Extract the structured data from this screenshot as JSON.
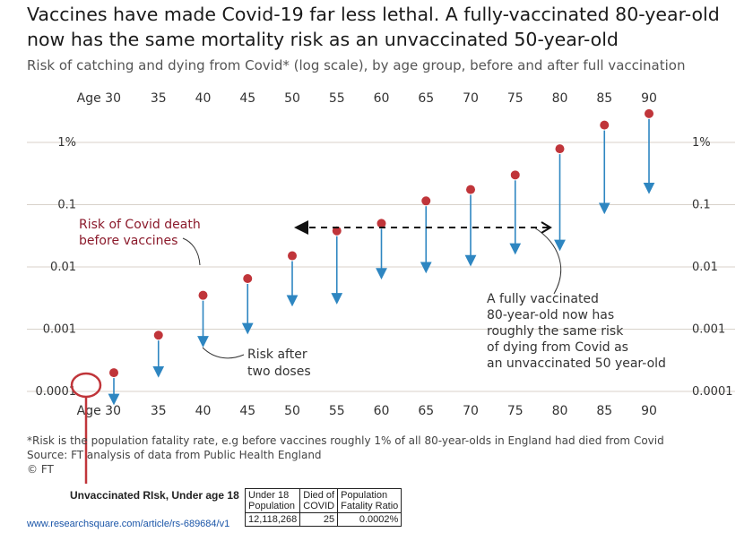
{
  "title": "Vaccines have made Covid-19 far less lethal. A fully-vaccinated 80-year-old now has the same mortality risk as an unvaccinated 50-year-old",
  "subtitle": "Risk of catching and dying from Covid* (log scale), by age group, before and after full vaccination",
  "chart_data": {
    "type": "scatter",
    "x": [
      30,
      35,
      40,
      45,
      50,
      55,
      60,
      65,
      70,
      75,
      80,
      85,
      90
    ],
    "x_tick_labels": [
      "Age 30",
      "35",
      "40",
      "45",
      "50",
      "55",
      "60",
      "65",
      "70",
      "75",
      "80",
      "85",
      "90"
    ],
    "y_tick_labels": [
      "1%",
      "0.1",
      "0.01",
      "0.001",
      "0.0001"
    ],
    "y_tick_values": [
      1,
      0.1,
      0.01,
      0.001,
      0.0001
    ],
    "y_scale": "log",
    "ylim": [
      0.0001,
      3
    ],
    "series": [
      {
        "values": [
          0.0002,
          0.0008,
          0.0035,
          0.0065,
          0.0151,
          0.038,
          0.05,
          0.115,
          0.175,
          0.3,
          0.79,
          1.9,
          2.9
        ]
      },
      {
        "values": [
          6.5e-05,
          0.00018,
          0.00055,
          0.00089,
          0.0025,
          0.0027,
          0.0068,
          0.0085,
          0.011,
          0.017,
          0.0194,
          0.076,
          0.16
        ]
      }
    ],
    "colors": {
      "before": "#c0353a",
      "after": "#2e86c1"
    },
    "grid": true
  },
  "annotations": {
    "before_line1": "Risk of Covid death",
    "before_line2": "before vaccines",
    "after_line1": "Risk after",
    "after_line2": "two doses",
    "compare_lines": [
      "A fully vaccinated",
      "80-year-old now has",
      "roughly the same risk",
      "of dying from Covid as",
      "an unvaccinated 50 year-old"
    ]
  },
  "footnote": {
    "line1": "*Risk is the population fatality rate, e.g before vaccines roughly 1% of all 80-year-olds in England had died from Covid",
    "line2": "Source: FT analysis of data from Public Health England",
    "line3": "© FT"
  },
  "extra": {
    "title": "Unvaccinated RIsk, Under age 18",
    "link": "www.researchsquare.com/article/rs-689684/v1",
    "table": {
      "h1a": "Under 18",
      "h1b": "Population",
      "h2a": "Died of",
      "h2b": "COVID",
      "h3a": "Population",
      "h3b": "Fatality Ratio",
      "v1": "12,118,268",
      "v2": "25",
      "v3": "0.0002%"
    }
  }
}
